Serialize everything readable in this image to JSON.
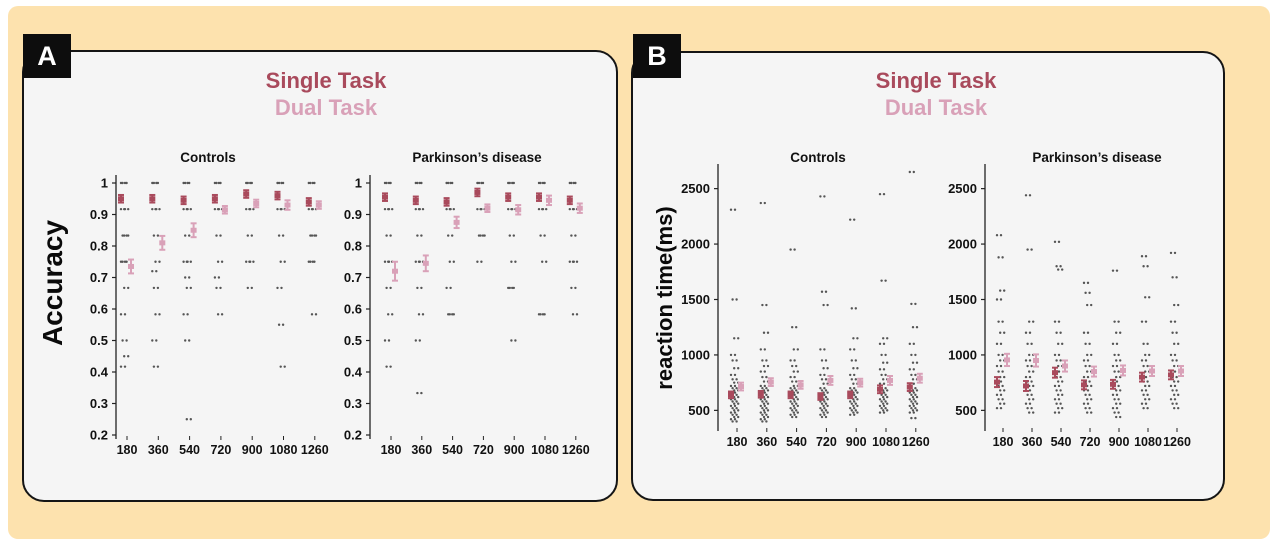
{
  "panel_a": {
    "badge": "A",
    "legend": {
      "single": "Single Task",
      "dual": "Dual Task"
    }
  },
  "panel_b": {
    "badge": "B",
    "legend": {
      "single": "Single Task",
      "dual": "Dual Task"
    }
  },
  "colors": {
    "single": "#a94a5c",
    "dual": "#d9a1b8",
    "points": "#555555"
  },
  "chart_data": [
    {
      "type": "scatter",
      "title": "Controls",
      "ylabel": "Accuracy",
      "xlabel": "",
      "categories": [
        "180",
        "360",
        "540",
        "720",
        "900",
        "1080",
        "1260"
      ],
      "yticks": [
        "1",
        "0.9",
        "0.8",
        "0.7",
        "0.6",
        "0.5",
        "0.4",
        "0.3",
        "0.2"
      ],
      "ylim": [
        0.2,
        1.0
      ],
      "series": [
        {
          "name": "Single Task",
          "mean": [
            0.95,
            0.95,
            0.945,
            0.95,
            0.965,
            0.96,
            0.94
          ],
          "err": [
            0.012,
            0.012,
            0.012,
            0.012,
            0.012,
            0.012,
            0.012
          ]
        },
        {
          "name": "Dual Task",
          "mean": [
            0.735,
            0.81,
            0.85,
            0.915,
            0.935,
            0.93,
            0.93
          ],
          "err": [
            0.022,
            0.022,
            0.022,
            0.012,
            0.012,
            0.015,
            0.012
          ]
        }
      ],
      "points": [
        [
          1,
          1,
          0.917,
          0.917,
          0.833,
          0.833,
          0.75,
          0.75,
          0.667,
          0.583,
          0.5,
          0.45,
          0.417
        ],
        [
          1,
          1,
          0.917,
          0.917,
          0.833,
          0.75,
          0.72,
          0.667,
          0.583,
          0.5,
          0.417
        ],
        [
          1,
          1,
          0.917,
          0.917,
          0.833,
          0.75,
          0.75,
          0.7,
          0.667,
          0.583,
          0.5,
          0.25
        ],
        [
          1,
          1,
          0.917,
          0.917,
          0.833,
          0.75,
          0.7,
          0.667,
          0.583
        ],
        [
          1,
          1,
          0.917,
          0.917,
          0.833,
          0.75,
          0.75,
          0.667
        ],
        [
          1,
          1,
          0.917,
          0.917,
          0.833,
          0.75,
          0.667,
          0.55,
          0.417
        ],
        [
          1,
          1,
          0.917,
          0.917,
          0.833,
          0.833,
          0.75,
          0.75,
          0.583
        ]
      ]
    },
    {
      "type": "scatter",
      "title": "Parkinson’s disease",
      "ylabel": "",
      "xlabel": "",
      "categories": [
        "180",
        "360",
        "540",
        "720",
        "900",
        "1080",
        "1260"
      ],
      "yticks": [
        "1",
        "0.9",
        "0.8",
        "0.7",
        "0.6",
        "0.5",
        "0.4",
        "0.3",
        "0.2"
      ],
      "ylim": [
        0.2,
        1.0
      ],
      "series": [
        {
          "name": "Single Task",
          "mean": [
            0.955,
            0.945,
            0.94,
            0.97,
            0.955,
            0.955,
            0.945
          ],
          "err": [
            0.012,
            0.012,
            0.012,
            0.012,
            0.012,
            0.012,
            0.012
          ]
        },
        {
          "name": "Dual Task",
          "mean": [
            0.72,
            0.745,
            0.875,
            0.92,
            0.915,
            0.945,
            0.92
          ],
          "err": [
            0.03,
            0.025,
            0.018,
            0.012,
            0.015,
            0.015,
            0.015
          ]
        }
      ],
      "points": [
        [
          1,
          1,
          0.917,
          0.917,
          0.833,
          0.75,
          0.75,
          0.667,
          0.583,
          0.5,
          0.417
        ],
        [
          1,
          1,
          0.917,
          0.917,
          0.833,
          0.75,
          0.75,
          0.667,
          0.583,
          0.5,
          0.333
        ],
        [
          1,
          1,
          0.917,
          0.917,
          0.833,
          0.75,
          0.667,
          0.583,
          0.583
        ],
        [
          1,
          1,
          0.917,
          0.917,
          0.833,
          0.833,
          0.75
        ],
        [
          1,
          1,
          0.917,
          0.917,
          0.833,
          0.75,
          0.667,
          0.667,
          0.5
        ],
        [
          1,
          1,
          0.917,
          0.917,
          0.833,
          0.75,
          0.583,
          0.583
        ],
        [
          1,
          1,
          0.917,
          0.917,
          0.833,
          0.75,
          0.75,
          0.667,
          0.583
        ]
      ]
    },
    {
      "type": "scatter",
      "title": "Controls",
      "ylabel": "reaction time(ms)",
      "xlabel": "",
      "categories": [
        "180",
        "360",
        "540",
        "720",
        "900",
        "1080",
        "1260"
      ],
      "yticks": [
        "2500",
        "2000",
        "1500",
        "1000",
        "500"
      ],
      "ylim": [
        350,
        2650
      ],
      "series": [
        {
          "name": "Single Task",
          "mean": [
            640,
            645,
            640,
            625,
            640,
            690,
            710
          ],
          "err": [
            30,
            30,
            30,
            30,
            30,
            35,
            35
          ]
        },
        {
          "name": "Dual Task",
          "mean": [
            715,
            755,
            730,
            770,
            750,
            770,
            790
          ],
          "err": [
            35,
            35,
            35,
            40,
            35,
            40,
            40
          ]
        }
      ],
      "points": [
        [
          2310,
          1500,
          1150,
          1000,
          950,
          880,
          820,
          780,
          750,
          720,
          700,
          680,
          660,
          640,
          620,
          600,
          580,
          560,
          540,
          520,
          500,
          480,
          460,
          440,
          420,
          400
        ],
        [
          2370,
          1450,
          1200,
          1050,
          950,
          900,
          850,
          800,
          760,
          720,
          700,
          680,
          660,
          640,
          620,
          600,
          580,
          560,
          540,
          520,
          500,
          480,
          460,
          440,
          420,
          400
        ],
        [
          1950,
          1250,
          1050,
          950,
          900,
          850,
          800,
          760,
          720,
          700,
          680,
          660,
          640,
          620,
          600,
          580,
          560,
          540,
          520,
          500,
          480,
          460,
          440
        ],
        [
          2430,
          1570,
          1450,
          1050,
          950,
          880,
          820,
          780,
          740,
          700,
          680,
          660,
          640,
          620,
          600,
          580,
          560,
          540,
          520,
          500,
          480,
          460,
          440
        ],
        [
          2220,
          1420,
          1150,
          1050,
          950,
          880,
          820,
          780,
          740,
          700,
          680,
          660,
          640,
          620,
          600,
          580,
          560,
          540,
          520,
          500,
          480,
          460
        ],
        [
          2450,
          1670,
          1150,
          1100,
          1000,
          930,
          870,
          820,
          780,
          740,
          700,
          680,
          660,
          640,
          620,
          600,
          580,
          560,
          540,
          520,
          500,
          480
        ],
        [
          2650,
          1460,
          1250,
          1100,
          1000,
          930,
          870,
          820,
          780,
          740,
          700,
          680,
          660,
          640,
          620,
          600,
          580,
          560,
          540,
          520,
          500,
          480,
          430
        ]
      ]
    },
    {
      "type": "scatter",
      "title": "Parkinson’s disease",
      "ylabel": "",
      "xlabel": "",
      "categories": [
        "180",
        "360",
        "540",
        "720",
        "900",
        "1080",
        "1260"
      ],
      "yticks": [
        "2500",
        "2000",
        "1500",
        "1000",
        "500"
      ],
      "ylim": [
        350,
        2650
      ],
      "series": [
        {
          "name": "Single Task",
          "mean": [
            755,
            720,
            840,
            730,
            735,
            800,
            820
          ],
          "err": [
            45,
            45,
            45,
            40,
            40,
            40,
            40
          ]
        },
        {
          "name": "Dual Task",
          "mean": [
            955,
            950,
            900,
            850,
            860,
            855,
            855
          ],
          "err": [
            55,
            55,
            50,
            45,
            45,
            45,
            45
          ]
        }
      ],
      "points": [
        [
          2080,
          1880,
          1580,
          1500,
          1300,
          1200,
          1100,
          1000,
          950,
          900,
          850,
          800,
          760,
          720,
          680,
          640,
          600,
          560,
          520
        ],
        [
          2440,
          1950,
          1300,
          1200,
          1100,
          1000,
          950,
          900,
          850,
          800,
          760,
          720,
          680,
          640,
          600,
          560,
          520,
          480
        ],
        [
          2020,
          1800,
          1770,
          1300,
          1200,
          1100,
          1000,
          950,
          900,
          850,
          800,
          760,
          720,
          680,
          640,
          600,
          560,
          520,
          480
        ],
        [
          1650,
          1560,
          1450,
          1200,
          1100,
          1000,
          950,
          900,
          850,
          800,
          760,
          720,
          680,
          640,
          600,
          560,
          520,
          480
        ],
        [
          1760,
          1300,
          1200,
          1100,
          1000,
          950,
          900,
          850,
          800,
          760,
          720,
          680,
          640,
          600,
          560,
          520,
          480,
          440
        ],
        [
          1890,
          1800,
          1520,
          1300,
          1100,
          1000,
          950,
          900,
          850,
          800,
          760,
          720,
          680,
          640,
          600,
          560,
          520
        ],
        [
          1920,
          1700,
          1450,
          1300,
          1200,
          1100,
          1000,
          950,
          900,
          850,
          800,
          760,
          720,
          680,
          640,
          600,
          560,
          520
        ]
      ]
    }
  ]
}
